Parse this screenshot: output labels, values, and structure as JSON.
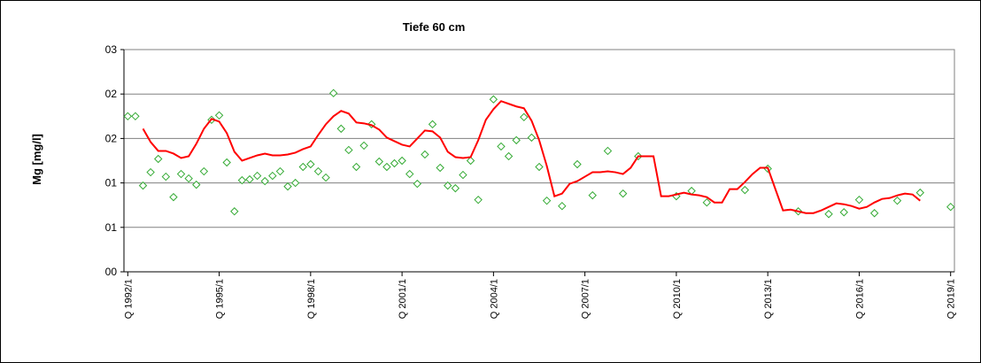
{
  "chart_data": {
    "type": "line",
    "title": "Tiefe  60 cm",
    "y_label": "Mg [mg/l]",
    "grid": true,
    "xlim": [
      1991.875,
      2019.125
    ],
    "ylim": [
      0,
      2.5
    ],
    "xticks": [
      {
        "value": 1992,
        "label": "Q 1992/1"
      },
      {
        "value": 1995,
        "label": "Q 1995/1"
      },
      {
        "value": 1998,
        "label": "Q 1998/1"
      },
      {
        "value": 2001,
        "label": "Q 2001/1"
      },
      {
        "value": 2004,
        "label": "Q 2004/1"
      },
      {
        "value": 2007,
        "label": "Q 2007/1"
      },
      {
        "value": 2010,
        "label": "Q 2010/1"
      },
      {
        "value": 2013,
        "label": "Q 2013/1"
      },
      {
        "value": 2016,
        "label": "Q 2016/1"
      },
      {
        "value": 2019,
        "label": "Q 2019/1"
      }
    ],
    "yticks": [
      {
        "value": 0,
        "label": "00"
      },
      {
        "value": 0.5,
        "label": "01"
      },
      {
        "value": 1,
        "label": "01"
      },
      {
        "value": 1.5,
        "label": "02"
      },
      {
        "value": 2,
        "label": "02"
      },
      {
        "value": 2.5,
        "label": "03"
      }
    ],
    "series": [
      {
        "color": "#33aa33",
        "style": "diamond",
        "x": [
          1992,
          1992.25,
          1992.5,
          1992.75,
          1993,
          1993.25,
          1993.5,
          1993.75,
          1994,
          1994.25,
          1994.5,
          1994.75,
          1995,
          1995.25,
          1995.5,
          1995.75,
          1996,
          1996.25,
          1996.5,
          1996.75,
          1997,
          1997.25,
          1997.5,
          1997.75,
          1998,
          1998.25,
          1998.5,
          1998.75,
          1999,
          1999.25,
          1999.5,
          1999.75,
          2000,
          2000.25,
          2000.5,
          2000.75,
          2001,
          2001.25,
          2001.5,
          2001.75,
          2002,
          2002.25,
          2002.5,
          2002.75,
          2003,
          2003.25,
          2003.5,
          2004,
          2004.25,
          2004.5,
          2004.75,
          2005,
          2005.25,
          2005.5,
          2005.75,
          2006.25,
          2006.75,
          2007.25,
          2007.75,
          2008.25,
          2008.75,
          2010,
          2010.5,
          2011,
          2012.25,
          2013,
          2014,
          2015,
          2015.5,
          2016,
          2016.5,
          2017.25,
          2018,
          2019
        ],
        "values": [
          1.75,
          1.75,
          0.97,
          1.12,
          1.27,
          1.07,
          0.84,
          1.1,
          1.05,
          0.98,
          1.13,
          1.71,
          1.76,
          1.23,
          0.68,
          1.03,
          1.04,
          1.08,
          1.02,
          1.08,
          1.13,
          0.96,
          1.0,
          1.18,
          1.21,
          1.13,
          1.06,
          2.01,
          1.61,
          1.37,
          1.18,
          1.42,
          1.66,
          1.24,
          1.18,
          1.22,
          1.25,
          1.1,
          0.99,
          1.32,
          1.66,
          1.17,
          0.97,
          0.94,
          1.09,
          1.25,
          0.81,
          1.94,
          1.41,
          1.3,
          1.48,
          1.74,
          1.51,
          1.18,
          0.8,
          0.74,
          1.21,
          0.86,
          1.36,
          0.88,
          1.3,
          0.85,
          0.91,
          0.78,
          0.92,
          1.16,
          0.68,
          0.65,
          0.67,
          0.81,
          0.66,
          0.8,
          0.89,
          0.73
        ]
      },
      {
        "color": "#ff0000",
        "style": "line",
        "x": [
          1992.5,
          1992.75,
          1993,
          1993.25,
          1993.5,
          1993.75,
          1994,
          1994.25,
          1994.5,
          1994.75,
          1995,
          1995.25,
          1995.5,
          1995.75,
          1996,
          1996.25,
          1996.5,
          1996.75,
          1997,
          1997.25,
          1997.5,
          1997.75,
          1998,
          1998.25,
          1998.5,
          1998.75,
          1999,
          1999.25,
          1999.5,
          1999.75,
          2000,
          2000.25,
          2000.5,
          2000.75,
          2001,
          2001.25,
          2001.5,
          2001.75,
          2002,
          2002.25,
          2002.5,
          2002.75,
          2003,
          2003.25,
          2003.5,
          2003.75,
          2004,
          2004.25,
          2004.5,
          2004.75,
          2005,
          2005.25,
          2005.5,
          2005.75,
          2006,
          2006.25,
          2006.5,
          2006.75,
          2007,
          2007.25,
          2007.5,
          2007.75,
          2008,
          2008.25,
          2008.5,
          2008.75,
          2009,
          2009.25,
          2009.5,
          2009.75,
          2010,
          2010.25,
          2010.5,
          2010.75,
          2011,
          2011.25,
          2011.5,
          2011.75,
          2012,
          2012.25,
          2012.5,
          2012.75,
          2013,
          2013.25,
          2013.5,
          2013.75,
          2014,
          2014.25,
          2014.5,
          2014.75,
          2015,
          2015.25,
          2015.5,
          2015.75,
          2016,
          2016.25,
          2016.5,
          2016.75,
          2017,
          2017.25,
          2017.5,
          2017.75,
          2018
        ],
        "values": [
          1.61,
          1.46,
          1.36,
          1.36,
          1.33,
          1.28,
          1.3,
          1.44,
          1.61,
          1.72,
          1.69,
          1.56,
          1.35,
          1.25,
          1.28,
          1.31,
          1.33,
          1.31,
          1.31,
          1.32,
          1.34,
          1.38,
          1.41,
          1.54,
          1.66,
          1.75,
          1.81,
          1.78,
          1.68,
          1.67,
          1.65,
          1.6,
          1.51,
          1.47,
          1.43,
          1.41,
          1.5,
          1.59,
          1.58,
          1.51,
          1.35,
          1.29,
          1.28,
          1.29,
          1.48,
          1.71,
          1.83,
          1.92,
          1.89,
          1.86,
          1.84,
          1.7,
          1.48,
          1.19,
          0.85,
          0.88,
          0.99,
          1.02,
          1.07,
          1.12,
          1.12,
          1.13,
          1.12,
          1.1,
          1.17,
          1.3,
          1.3,
          1.3,
          0.85,
          0.85,
          0.87,
          0.89,
          0.87,
          0.86,
          0.84,
          0.78,
          0.78,
          0.93,
          0.93,
          1.01,
          1.1,
          1.17,
          1.17,
          0.93,
          0.69,
          0.7,
          0.68,
          0.66,
          0.66,
          0.69,
          0.73,
          0.77,
          0.76,
          0.74,
          0.71,
          0.73,
          0.78,
          0.82,
          0.83,
          0.86,
          0.88,
          0.87,
          0.8
        ]
      }
    ]
  }
}
